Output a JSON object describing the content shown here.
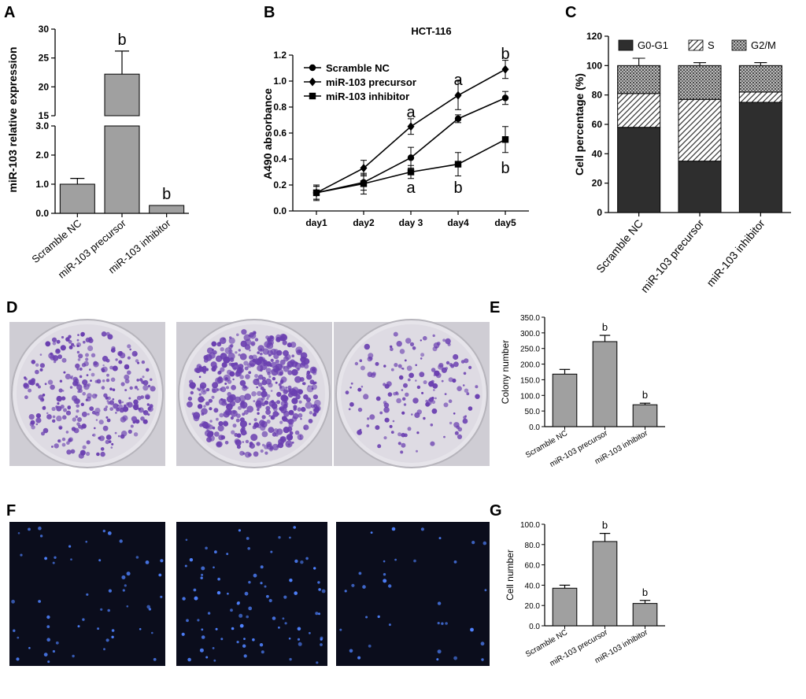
{
  "panel_letters": [
    "A",
    "B",
    "C",
    "D",
    "E",
    "F",
    "G"
  ],
  "chart_data": [
    {
      "id": "A",
      "type": "bar",
      "categories": [
        "Scramble NC",
        "miR-103 precursor",
        "miR-103 inhibitor"
      ],
      "values": [
        1.0,
        22.2,
        0.27
      ],
      "errors": [
        0.2,
        4.0,
        0.0
      ],
      "ylabel": "miR-103 relative expression",
      "axis_break": true,
      "lower_segment": {
        "ylim": [
          0,
          3.0
        ],
        "ticks": [
          "0.0",
          "1.0",
          "2.0",
          "3.0"
        ]
      },
      "upper_segment": {
        "ylim": [
          15,
          30
        ],
        "ticks": [
          "15",
          "20",
          "25",
          "30"
        ]
      },
      "annotations": [
        "",
        "b",
        "b"
      ],
      "bar_color": "#a0a0a0"
    },
    {
      "id": "B",
      "type": "line",
      "title": "HCT-116",
      "categories": [
        "day1",
        "day2",
        "day 3",
        "day4",
        "day5"
      ],
      "ylabel": "A490 absorbance",
      "ylim": [
        0,
        1.2
      ],
      "yticks": [
        "0.0",
        "0.2",
        "0.4",
        "0.6",
        "0.8",
        "1.0",
        "1.2"
      ],
      "series": [
        {
          "name": "Scramble NC",
          "marker": "circle",
          "values": [
            0.14,
            0.22,
            0.41,
            0.71,
            0.87
          ],
          "errors": [
            0.06,
            0.06,
            0.08,
            0.03,
            0.05
          ]
        },
        {
          "name": "miR-103 precursor",
          "marker": "diamond",
          "values": [
            0.14,
            0.33,
            0.65,
            0.89,
            1.09
          ],
          "errors": [
            0.05,
            0.06,
            0.06,
            0.11,
            0.07
          ]
        },
        {
          "name": "miR-103 inhibitor",
          "marker": "square",
          "values": [
            0.14,
            0.21,
            0.3,
            0.36,
            0.55
          ],
          "errors": [
            0.05,
            0.08,
            0.05,
            0.09,
            0.1
          ]
        }
      ],
      "annotations": [
        {
          "label": "a",
          "category": "day 3",
          "y": 0.72
        },
        {
          "label": "a",
          "category": "day4",
          "y": 0.97
        },
        {
          "label": "b",
          "category": "day5",
          "y": 1.17
        },
        {
          "label": "a",
          "category": "day 3",
          "y": 0.14
        },
        {
          "label": "b",
          "category": "day4",
          "y": 0.14
        },
        {
          "label": "b",
          "category": "day5",
          "y": 0.29
        }
      ]
    },
    {
      "id": "C",
      "type": "bar",
      "stacked": true,
      "categories": [
        "Scramble NC",
        "miR-103 precursor",
        "miR-103 inhibitor"
      ],
      "ylabel": "Cell percentage (%)",
      "ylim": [
        0,
        120
      ],
      "yticks": [
        "0",
        "20",
        "40",
        "60",
        "80",
        "100",
        "120"
      ],
      "legend": "top",
      "series": [
        {
          "name": "G0-G1",
          "pattern": "solid",
          "values": [
            58,
            35,
            75
          ],
          "errors": [
            4,
            3,
            0
          ]
        },
        {
          "name": "S",
          "pattern": "hatch",
          "values": [
            23,
            42,
            7
          ],
          "errors": [
            0,
            2,
            3
          ]
        },
        {
          "name": "G2/M",
          "pattern": "dots",
          "values": [
            19,
            23,
            18
          ],
          "errors": [
            5,
            2,
            2
          ]
        }
      ]
    },
    {
      "id": "E",
      "type": "bar",
      "categories": [
        "Scramble NC",
        "miR-103 precursor",
        "miR-103 inhibitor"
      ],
      "values": [
        168,
        272,
        70
      ],
      "errors": [
        15,
        20,
        5
      ],
      "ylabel": "Colony number",
      "ylim": [
        0,
        350
      ],
      "yticks": [
        "0.0",
        "50.0",
        "100.0",
        "150.0",
        "200.0",
        "250.0",
        "300.0",
        "350.0"
      ],
      "annotations": [
        "",
        "b",
        "b"
      ],
      "bar_color": "#a0a0a0"
    },
    {
      "id": "G",
      "type": "bar",
      "categories": [
        "Scramble NC",
        "miR-103 precursor",
        "miR-103 inhibitor"
      ],
      "values": [
        37,
        83,
        22
      ],
      "errors": [
        3,
        8,
        3
      ],
      "ylabel": "Cell number",
      "ylim": [
        0,
        100
      ],
      "yticks": [
        "0.0",
        "20.0",
        "40.0",
        "60.0",
        "80.0",
        "100.0"
      ],
      "annotations": [
        "",
        "b",
        "b"
      ],
      "bar_color": "#a0a0a0"
    }
  ],
  "images": {
    "colony_plates": {
      "count": 3,
      "dish_color": "#d9d6dd",
      "colony_color": "#6a3fb0",
      "densities": [
        300,
        480,
        160
      ]
    },
    "fluorescence": {
      "count": 3,
      "bg_color": "#0b0d1c",
      "cell_color": "#4f82ff",
      "densities": [
        55,
        85,
        35
      ]
    }
  }
}
